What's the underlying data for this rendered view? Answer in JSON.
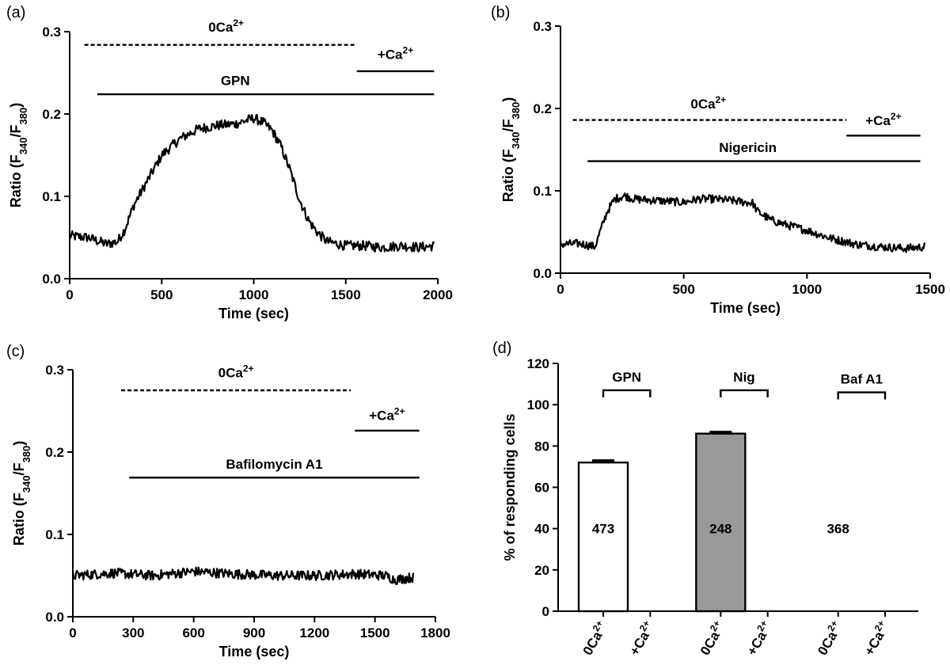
{
  "chart_data": [
    {
      "panel": "(a)",
      "type": "line",
      "xlabel": "Time (sec)",
      "ylabel": "Ratio (F340/F380)",
      "ylabel_main": "Ratio (F",
      "ylabel_sub1": "340",
      "ylabel_mid": "/F",
      "ylabel_sub2": "380",
      "ylabel_end": ")",
      "xlim": [
        0,
        2000
      ],
      "ylim": [
        0,
        0.3
      ],
      "xticks": [
        "0",
        "500",
        "1000",
        "1500",
        "2000"
      ],
      "xtick_values": [
        0,
        500,
        1000,
        1500,
        2000
      ],
      "yticks": [
        "0.0",
        "0.1",
        "0.2",
        "0.3"
      ],
      "ytick_values": [
        0,
        0.1,
        0.2,
        0.3
      ],
      "trace": [
        [
          0,
          0.052
        ],
        [
          100,
          0.05
        ],
        [
          200,
          0.042
        ],
        [
          260,
          0.045
        ],
        [
          300,
          0.06
        ],
        [
          350,
          0.09
        ],
        [
          400,
          0.11
        ],
        [
          450,
          0.13
        ],
        [
          500,
          0.15
        ],
        [
          550,
          0.16
        ],
        [
          600,
          0.17
        ],
        [
          700,
          0.182
        ],
        [
          800,
          0.186
        ],
        [
          900,
          0.188
        ],
        [
          1000,
          0.195
        ],
        [
          1050,
          0.19
        ],
        [
          1100,
          0.18
        ],
        [
          1150,
          0.16
        ],
        [
          1200,
          0.13
        ],
        [
          1250,
          0.095
        ],
        [
          1300,
          0.07
        ],
        [
          1350,
          0.055
        ],
        [
          1400,
          0.045
        ],
        [
          1500,
          0.04
        ],
        [
          1600,
          0.04
        ],
        [
          1700,
          0.038
        ],
        [
          1800,
          0.04
        ],
        [
          1900,
          0.038
        ],
        [
          1980,
          0.04
        ]
      ],
      "noise": 0.006,
      "bars": [
        {
          "label_main": "0Ca",
          "label_sup": "2+",
          "x0": 80,
          "x1": 1560,
          "y": 0.284,
          "dashed": true,
          "label_x": 850,
          "label_y": 0.3
        },
        {
          "label_main": "+Ca",
          "label_sup": "2+",
          "x0": 1560,
          "x1": 1980,
          "y": 0.252,
          "dashed": false,
          "label_x": 1770,
          "label_y": 0.267
        },
        {
          "label_main": "GPN",
          "label_sup": "",
          "x0": 150,
          "x1": 1980,
          "y": 0.224,
          "dashed": false,
          "label_x": 900,
          "label_y": 0.235
        }
      ]
    },
    {
      "panel": "(b)",
      "type": "line",
      "xlabel": "Time (sec)",
      "ylabel": "Ratio (F340/F380)",
      "ylabel_main": "Ratio (F",
      "ylabel_sub1": "340",
      "ylabel_mid": "/F",
      "ylabel_sub2": "380",
      "ylabel_end": ")",
      "xlim": [
        0,
        1500
      ],
      "ylim": [
        0,
        0.3
      ],
      "xticks": [
        "0",
        "500",
        "1000",
        "1500"
      ],
      "xtick_values": [
        0,
        500,
        1000,
        1500
      ],
      "yticks": [
        "0.0",
        "0.1",
        "0.2",
        "0.3"
      ],
      "ytick_values": [
        0,
        0.1,
        0.2,
        0.3
      ],
      "trace": [
        [
          0,
          0.035
        ],
        [
          80,
          0.036
        ],
        [
          140,
          0.032
        ],
        [
          160,
          0.05
        ],
        [
          190,
          0.075
        ],
        [
          220,
          0.09
        ],
        [
          260,
          0.094
        ],
        [
          300,
          0.09
        ],
        [
          400,
          0.088
        ],
        [
          500,
          0.086
        ],
        [
          560,
          0.09
        ],
        [
          620,
          0.09
        ],
        [
          700,
          0.088
        ],
        [
          780,
          0.085
        ],
        [
          800,
          0.075
        ],
        [
          850,
          0.065
        ],
        [
          900,
          0.06
        ],
        [
          1000,
          0.052
        ],
        [
          1100,
          0.042
        ],
        [
          1200,
          0.035
        ],
        [
          1300,
          0.032
        ],
        [
          1400,
          0.03
        ],
        [
          1480,
          0.032
        ]
      ],
      "noise": 0.005,
      "bars": [
        {
          "label_main": "0Ca",
          "label_sup": "2+",
          "x0": 50,
          "x1": 1160,
          "y": 0.186,
          "dashed": true,
          "label_x": 600,
          "label_y": 0.2
        },
        {
          "label_main": "+Ca",
          "label_sup": "2+",
          "x0": 1160,
          "x1": 1460,
          "y": 0.167,
          "dashed": false,
          "label_x": 1310,
          "label_y": 0.18
        },
        {
          "label_main": "Nigericin",
          "label_sup": "",
          "x0": 110,
          "x1": 1460,
          "y": 0.136,
          "dashed": false,
          "label_x": 760,
          "label_y": 0.147
        }
      ]
    },
    {
      "panel": "(c)",
      "type": "line",
      "xlabel": "Time (sec)",
      "ylabel": "Ratio (F340/F380)",
      "ylabel_main": "Ratio (F",
      "ylabel_sub1": "340",
      "ylabel_mid": "/F",
      "ylabel_sub2": "380",
      "ylabel_end": ")",
      "xlim": [
        0,
        1800
      ],
      "ylim": [
        0,
        0.3
      ],
      "xticks": [
        "0",
        "300",
        "600",
        "900",
        "1200",
        "1500",
        "1800"
      ],
      "xtick_values": [
        0,
        300,
        600,
        900,
        1200,
        1500,
        1800
      ],
      "yticks": [
        "0.0",
        "0.1",
        "0.2",
        "0.3"
      ],
      "ytick_values": [
        0,
        0.1,
        0.2,
        0.3
      ],
      "trace": [
        [
          0,
          0.05
        ],
        [
          200,
          0.053
        ],
        [
          400,
          0.05
        ],
        [
          600,
          0.055
        ],
        [
          800,
          0.052
        ],
        [
          1000,
          0.05
        ],
        [
          1200,
          0.05
        ],
        [
          1400,
          0.052
        ],
        [
          1550,
          0.05
        ],
        [
          1600,
          0.045
        ],
        [
          1690,
          0.048
        ]
      ],
      "noise": 0.006,
      "bars": [
        {
          "label_main": "0Ca",
          "label_sup": "2+",
          "x0": 240,
          "x1": 1380,
          "y": 0.275,
          "dashed": true,
          "label_x": 810,
          "label_y": 0.291
        },
        {
          "label_main": "+Ca",
          "label_sup": "2+",
          "x0": 1400,
          "x1": 1720,
          "y": 0.226,
          "dashed": false,
          "label_x": 1560,
          "label_y": 0.239
        },
        {
          "label_main": "Bafilomycin  A1",
          "label_sup": "",
          "x0": 280,
          "x1": 1720,
          "y": 0.169,
          "dashed": false,
          "label_x": 1000,
          "label_y": 0.18
        }
      ]
    },
    {
      "panel": "(d)",
      "type": "bar",
      "ylabel": "% of responding cells",
      "ylim": [
        0,
        120
      ],
      "yticks": [
        "0",
        "20",
        "40",
        "60",
        "80",
        "100",
        "120"
      ],
      "ytick_values": [
        0,
        20,
        40,
        60,
        80,
        100,
        120
      ],
      "categories": [
        "0Ca2+",
        "+Ca2+",
        "0Ca2+",
        "+Ca2+",
        "0Ca2+",
        "+Ca2+"
      ],
      "category_main": [
        "0Ca",
        "+Ca",
        "0Ca",
        "+Ca",
        "0Ca",
        "+Ca"
      ],
      "category_sup": [
        "2+",
        "2+",
        "2+",
        "2+",
        "2+",
        "2+"
      ],
      "category_pos": [
        0,
        1,
        2.5,
        3.5,
        5,
        6
      ],
      "values": [
        72,
        0,
        86,
        0,
        0,
        0
      ],
      "errors": [
        1,
        0,
        0.8,
        0,
        0,
        0
      ],
      "fills": [
        "#ffffff",
        "#ffffff",
        "#999999",
        "#ffffff",
        "#ffffff",
        "#ffffff"
      ],
      "groups": [
        {
          "label": "GPN",
          "count": "473",
          "pos": [
            0,
            1
          ],
          "bracket_y": 107,
          "count_y": 40
        },
        {
          "label": "Nig",
          "count": "248",
          "pos": [
            2.5,
            3.5
          ],
          "bracket_y": 107,
          "count_y": 40
        },
        {
          "label": "Baf A1",
          "count": "368",
          "pos": [
            5,
            6
          ],
          "bracket_y": 106,
          "count_y": 40
        }
      ]
    }
  ]
}
